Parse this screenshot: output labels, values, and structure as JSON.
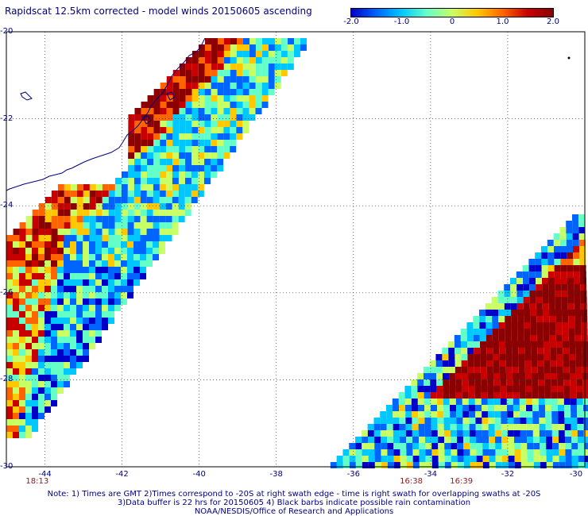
{
  "title": "Rapidscat 12.5km corrected - model winds 20150605 ascending",
  "colorbar": {
    "min": -2.0,
    "max": 2.0,
    "tick_labels": [
      "-2.0",
      "-1.0",
      "0",
      "1.0",
      "2.0"
    ],
    "tick_values": [
      -2.0,
      -1.0,
      0,
      1.0,
      2.0
    ],
    "colors": [
      "#0000c8",
      "#0064ff",
      "#00c8ff",
      "#64ffc8",
      "#c8ff64",
      "#ffc800",
      "#ff6400",
      "#c80000",
      "#8b0000"
    ]
  },
  "map": {
    "lon_range": [
      -45,
      -30
    ],
    "lat_range": [
      -30,
      -20
    ],
    "x_tick_labels": [
      "-44",
      "-42",
      "-40",
      "-38",
      "-36",
      "-34",
      "-32",
      "-30"
    ],
    "x_tick_values": [
      -44,
      -42,
      -40,
      -38,
      -36,
      -34,
      -32,
      -30
    ],
    "y_tick_labels": [
      "-20",
      "-22",
      "-24",
      "-26",
      "-28",
      "-30"
    ],
    "y_tick_values": [
      -20,
      -22,
      -24,
      -26,
      -28,
      -30
    ],
    "land_color": "#ffffff",
    "coast_color": "#000080",
    "grid": "dotted"
  },
  "times": [
    {
      "label": "18:13",
      "lon": -44.2
    },
    {
      "label": "16:38",
      "lon": -34.5
    },
    {
      "label": "16:39",
      "lon": -33.2
    }
  ],
  "notes": [
    "Note: 1) Times are GMT 2)Times correspond to -20S at right swath edge - time is right swath for overlapping swaths at -20S",
    "3)Data buffer is 22 hrs for 20150605 4) Black barbs indicate possible rain contamination",
    "NOAA/NESDIS/Office of Research and Applications"
  ]
}
